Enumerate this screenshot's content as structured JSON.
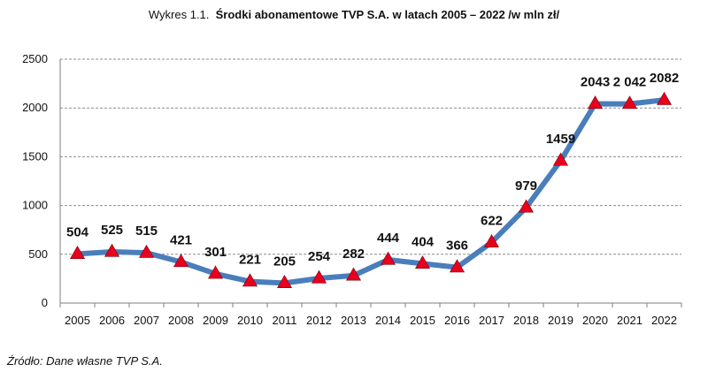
{
  "caption": {
    "prefix": "Wykres 1.1.",
    "title": "Środki abonamentowe TVP S.A. w latach 2005 – 2022 /w mln zł/"
  },
  "source_note": "Źródło: Dane własne TVP S.A.",
  "chart_data": {
    "type": "line",
    "title": "Środki abonamentowe TVP S.A. w latach 2005 – 2022 /w mln zł/",
    "xlabel": "",
    "ylabel": "",
    "categories": [
      "2005",
      "2006",
      "2007",
      "2008",
      "2009",
      "2010",
      "2011",
      "2012",
      "2013",
      "2014",
      "2015",
      "2016",
      "2017",
      "2018",
      "2019",
      "2020",
      "2021",
      "2022"
    ],
    "series": [
      {
        "name": "Środki abonamentowe",
        "values": [
          504,
          525,
          515,
          421,
          301,
          221,
          205,
          254,
          282,
          444,
          404,
          366,
          622,
          979,
          1459,
          2043,
          2042,
          2082
        ],
        "labels": [
          "504",
          "525",
          "515",
          "421",
          "301",
          "221",
          "205",
          "254",
          "282",
          "444",
          "404",
          "366",
          "622",
          "979",
          "1459",
          "2043",
          "2 042",
          "2082"
        ]
      }
    ],
    "ylim": [
      0,
      2500
    ],
    "yticks": [
      "0",
      "500",
      "1000",
      "1500",
      "2000",
      "2500"
    ],
    "grid": true,
    "line_color": "#4a7ebb",
    "marker_color": "#e8001c",
    "marker_shape": "triangle"
  }
}
